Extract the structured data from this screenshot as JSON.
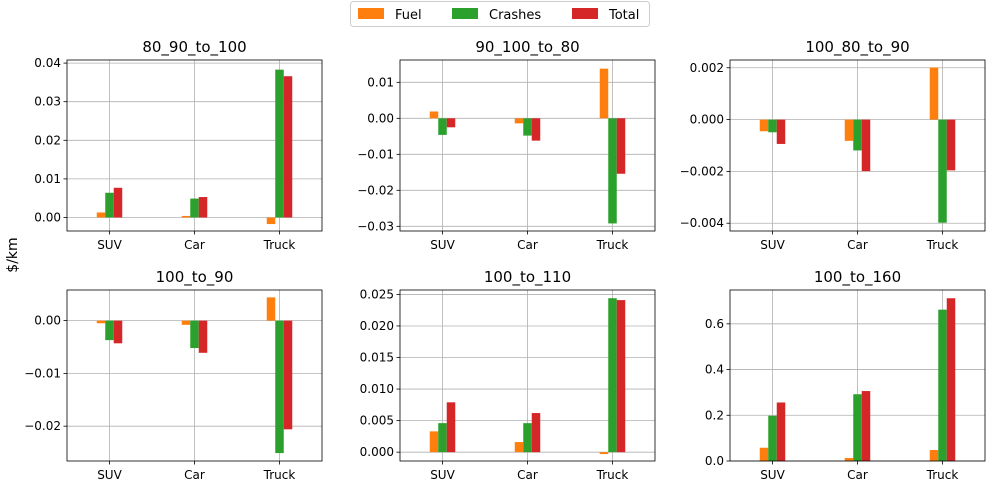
{
  "figure": {
    "ylabel": "$/km"
  },
  "legend": {
    "placement": "top-center"
  },
  "series_colors": {
    "Fuel": "#ff7f0e",
    "Crashes": "#2ca02c",
    "Total": "#d62728"
  },
  "chart_data": [
    {
      "type": "bar",
      "title": "80_90_to_100",
      "categories": [
        "SUV",
        "Car",
        "Truck"
      ],
      "series": [
        {
          "name": "Fuel",
          "values": [
            0.0013,
            0.0004,
            -0.0017
          ]
        },
        {
          "name": "Crashes",
          "values": [
            0.0064,
            0.0049,
            0.0383
          ]
        },
        {
          "name": "Total",
          "values": [
            0.0077,
            0.0053,
            0.0366
          ]
        }
      ],
      "ylim": [
        -0.0035,
        0.0408
      ],
      "yticks": [
        0.0,
        0.01,
        0.02,
        0.03,
        0.04
      ],
      "ytick_labels": [
        "0.00",
        "0.01",
        "0.02",
        "0.03",
        "0.04"
      ],
      "grid": true
    },
    {
      "type": "bar",
      "title": "90_100_to_80",
      "categories": [
        "SUV",
        "Car",
        "Truck"
      ],
      "series": [
        {
          "name": "Fuel",
          "values": [
            0.0019,
            -0.0014,
            0.0138
          ]
        },
        {
          "name": "Crashes",
          "values": [
            -0.0046,
            -0.0048,
            -0.0292
          ]
        },
        {
          "name": "Total",
          "values": [
            -0.0025,
            -0.0062,
            -0.0154
          ]
        }
      ],
      "ylim": [
        -0.0313,
        0.0162
      ],
      "yticks": [
        0.01,
        0.0,
        -0.01,
        -0.02,
        -0.03
      ],
      "ytick_labels": [
        "0.01",
        "0.00",
        "−0.01",
        "−0.02",
        "−0.03"
      ],
      "grid": true
    },
    {
      "type": "bar",
      "title": "100_80_to_90",
      "categories": [
        "SUV",
        "Car",
        "Truck"
      ],
      "series": [
        {
          "name": "Fuel",
          "values": [
            -0.00045,
            -0.00082,
            0.00201
          ]
        },
        {
          "name": "Crashes",
          "values": [
            -0.00049,
            -0.00119,
            -0.00398
          ]
        },
        {
          "name": "Total",
          "values": [
            -0.00094,
            -0.00199,
            -0.00196
          ]
        }
      ],
      "ylim": [
        -0.0043,
        0.0023
      ],
      "yticks": [
        0.002,
        0.0,
        -0.002,
        -0.004
      ],
      "ytick_labels": [
        "0.002",
        "0.000",
        "−0.002",
        "−0.004"
      ],
      "grid": true
    },
    {
      "type": "bar",
      "title": "100_to_90",
      "categories": [
        "SUV",
        "Car",
        "Truck"
      ],
      "series": [
        {
          "name": "Fuel",
          "values": [
            -0.0005,
            -0.0008,
            0.0044
          ]
        },
        {
          "name": "Crashes",
          "values": [
            -0.0037,
            -0.0052,
            -0.0251
          ]
        },
        {
          "name": "Total",
          "values": [
            -0.0043,
            -0.0061,
            -0.0206
          ]
        }
      ],
      "ylim": [
        -0.0266,
        0.0058
      ],
      "yticks": [
        0.0,
        -0.01,
        -0.02
      ],
      "ytick_labels": [
        "0.00",
        "−0.01",
        "−0.02"
      ],
      "grid": true
    },
    {
      "type": "bar",
      "title": "100_to_110",
      "categories": [
        "SUV",
        "Car",
        "Truck"
      ],
      "series": [
        {
          "name": "Fuel",
          "values": [
            0.0033,
            0.0016,
            -0.0003
          ]
        },
        {
          "name": "Crashes",
          "values": [
            0.0046,
            0.0046,
            0.0244
          ]
        },
        {
          "name": "Total",
          "values": [
            0.0079,
            0.0062,
            0.0241
          ]
        }
      ],
      "ylim": [
        -0.0014,
        0.0257
      ],
      "yticks": [
        0.0,
        0.005,
        0.01,
        0.015,
        0.02,
        0.025
      ],
      "ytick_labels": [
        "0.000",
        "0.005",
        "0.010",
        "0.015",
        "0.020",
        "0.025"
      ],
      "grid": true
    },
    {
      "type": "bar",
      "title": "100_to_160",
      "categories": [
        "SUV",
        "Car",
        "Truck"
      ],
      "series": [
        {
          "name": "Fuel",
          "values": [
            0.058,
            0.013,
            0.048
          ]
        },
        {
          "name": "Crashes",
          "values": [
            0.198,
            0.292,
            0.662
          ]
        },
        {
          "name": "Total",
          "values": [
            0.256,
            0.306,
            0.712
          ]
        }
      ],
      "ylim": [
        0.0,
        0.748
      ],
      "yticks": [
        0.0,
        0.2,
        0.4,
        0.6
      ],
      "ytick_labels": [
        "0.0",
        "0.2",
        "0.4",
        "0.6"
      ],
      "grid": true
    }
  ]
}
